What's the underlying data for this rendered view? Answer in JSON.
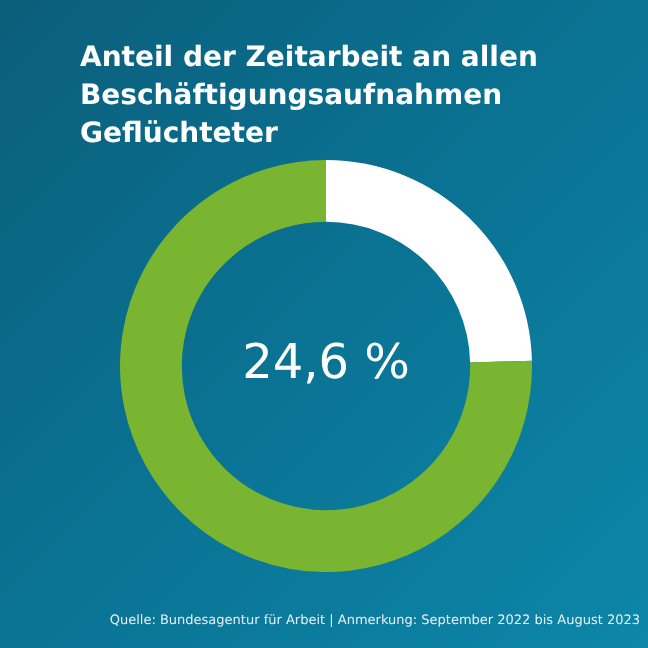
{
  "chart_data": {
    "type": "donut",
    "title": "Anteil der Zeitarbeit an allen Beschäftigungsaufnahmen Geflüchteter",
    "categories": [
      null,
      null
    ],
    "values": [
      24.6,
      75.4
    ],
    "colors": [
      "#ffffff",
      "#7ab531"
    ],
    "value_labels": [
      "24,6 %",
      null
    ],
    "annotations": [
      "Quelle: Bundesagentur für Arbeit | Anmerkung: September 2022 bis August 2023"
    ],
    "legend": false
  }
}
